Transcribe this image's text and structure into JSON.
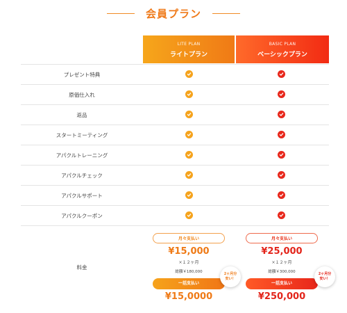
{
  "section_title": "会員プラン",
  "plans": [
    {
      "id": "lite",
      "sub": "LITE PLAN",
      "name": "ライトプラン"
    },
    {
      "id": "basic",
      "sub": "BASIC PLAN",
      "name": "ベーシックプラン"
    }
  ],
  "features": [
    {
      "label": "プレゼント特典",
      "lite": true,
      "basic": true
    },
    {
      "label": "原価仕入れ",
      "lite": true,
      "basic": true
    },
    {
      "label": "返品",
      "lite": true,
      "basic": true
    },
    {
      "label": "スタートミーティング",
      "lite": true,
      "basic": true
    },
    {
      "label": "アパクルトレーニング",
      "lite": true,
      "basic": true
    },
    {
      "label": "アパクルチェック",
      "lite": true,
      "basic": true
    },
    {
      "label": "アパクルサポート",
      "lite": true,
      "basic": true
    },
    {
      "label": "アパクルクーポン",
      "lite": true,
      "basic": true
    }
  ],
  "pricing": {
    "label": "料金",
    "lite": {
      "monthly_label": "月々支払い",
      "monthly_price": "¥15,000",
      "times": "×１２ヶ月",
      "total": "総額￥180,000",
      "badge": "2ヶ月分\n安い！",
      "lump_label": "一括支払い",
      "lump_price": "¥15,0000"
    },
    "basic": {
      "monthly_label": "月々支払い",
      "monthly_price": "¥25,000",
      "times": "×１２ヶ月",
      "total": "総額￥300,000",
      "badge": "2ヶ月分\n安い！",
      "lump_label": "一括支払い",
      "lump_price": "¥250,000"
    }
  },
  "colors": {
    "lite": "#f5a31d",
    "basic": "#e8281c",
    "title": "#ef7a1a"
  }
}
